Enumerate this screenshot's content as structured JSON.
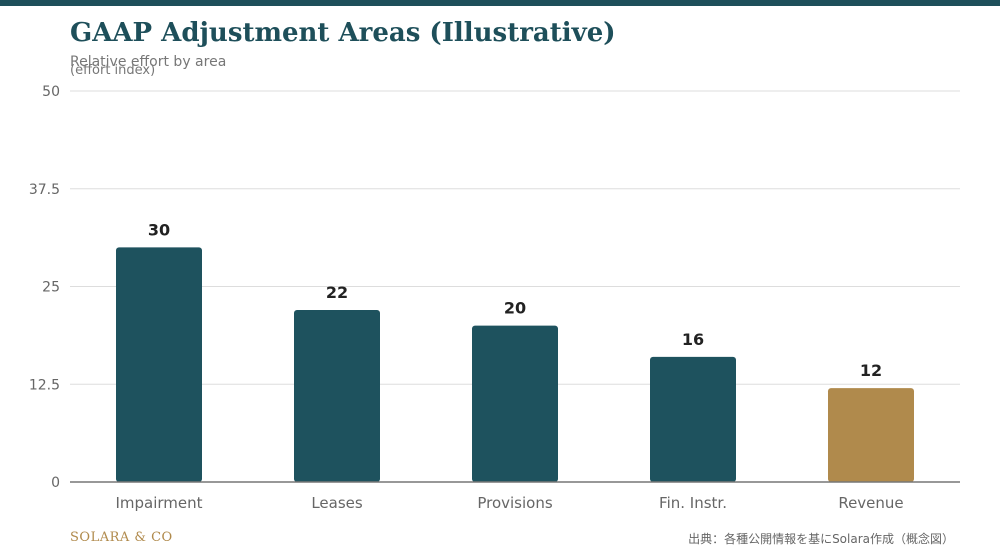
{
  "colors": {
    "top_band": "#1e4f5a",
    "bar": "#1e525e",
    "highlight": "#b08a4c",
    "grid": "#dddddd",
    "axis": "#777777",
    "tick_text": "#666666",
    "label_text": "#222222"
  },
  "chart_data": {
    "type": "bar",
    "title": "GAAP Adjustment Areas (Illustrative)",
    "subtitle": "Relative effort by area",
    "ylabel": "(effort index)",
    "xlabel": "",
    "categories": [
      "Impairment",
      "Leases",
      "Provisions",
      "Fin. Instr.",
      "Revenue"
    ],
    "values": [
      30,
      22,
      20,
      16,
      12
    ],
    "highlight_category": "Revenue",
    "ylim": [
      0,
      50
    ],
    "yticks": [
      0,
      12.5,
      25,
      37.5,
      50
    ],
    "ytick_labels": [
      "0",
      "12.5",
      "25",
      "37.5",
      "50"
    ],
    "grid": true,
    "legend": "none",
    "data_labels": true
  },
  "footer": {
    "brand": "SOLARA & CO",
    "source": "出典：各種公開情報を基にSolara作成（概念図）"
  }
}
